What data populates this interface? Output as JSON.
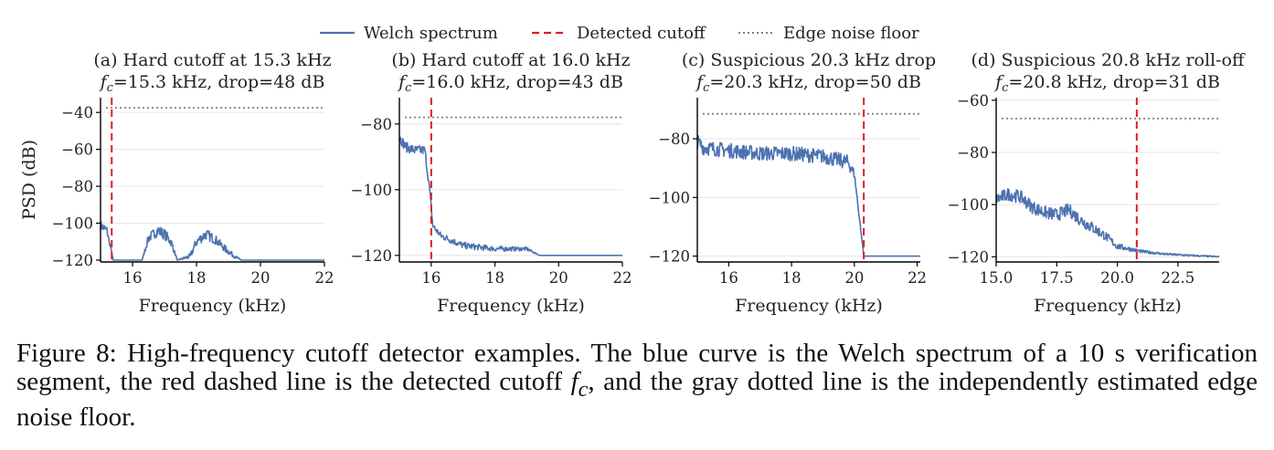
{
  "legend": {
    "welch": "Welch spectrum",
    "cutoff": "Detected cutoff",
    "noise": "Edge noise floor"
  },
  "colors": {
    "welch": "#4c72b0",
    "cutoff": "#e41a1c",
    "noise": "#808080"
  },
  "ylabel": "PSD (dB)",
  "xlabel": "Frequency (kHz)",
  "caption": {
    "prefix": "Figure 8: High-frequency cutoff detector examples. The blue curve is the Welch spectrum of a 10 s verification segment, the red dashed line is the detected cutoff ",
    "symbol": "fc",
    "suffix": ", and the gray dotted line is the independently estimated edge noise floor."
  },
  "chart_data": [
    {
      "type": "line",
      "title": "(a) Hard cutoff at 15.3 kHz",
      "subtitle": "fc=15.3 kHz, drop=48 dB",
      "xlim": [
        15,
        22
      ],
      "ylim": [
        -121,
        -32
      ],
      "xticks": [
        16,
        18,
        20,
        22
      ],
      "xticklabels": [
        "16",
        "18",
        "20",
        "22"
      ],
      "yticks": [
        -40,
        -60,
        -80,
        -100,
        -120
      ],
      "yticklabels": [
        "−40",
        "−60",
        "−80",
        "−100",
        "−120"
      ],
      "cutoff": 15.35,
      "noise_floor": -37.5,
      "series": [
        {
          "x": [
            15.0,
            15.2,
            15.4,
            16.3,
            16.5,
            16.8,
            17.0,
            17.2,
            17.4,
            17.8,
            18.0,
            18.3,
            18.6,
            18.9,
            19.2,
            19.4,
            22.0
          ],
          "y": [
            -101,
            -104,
            -120,
            -120,
            -108,
            -104,
            -106,
            -110,
            -120,
            -118,
            -110,
            -106,
            -109,
            -114,
            -118,
            -120,
            -120
          ],
          "noise": [
            2.5,
            2.5,
            0,
            0,
            2.5,
            3,
            3,
            2.5,
            0,
            1.5,
            2.5,
            3,
            2.5,
            2,
            1,
            0,
            0
          ]
        }
      ]
    },
    {
      "type": "line",
      "title": "(b) Hard cutoff at 16.0 kHz",
      "subtitle": "fc=16.0 kHz, drop=43 dB",
      "xlim": [
        15,
        22
      ],
      "ylim": [
        -122,
        -72
      ],
      "xticks": [
        16,
        18,
        20,
        22
      ],
      "xticklabels": [
        "16",
        "18",
        "20",
        "22"
      ],
      "yticks": [
        -80,
        -100,
        -120
      ],
      "yticklabels": [
        "−80",
        "−100",
        "−120"
      ],
      "cutoff": 16.0,
      "noise_floor": -78,
      "series": [
        {
          "x": [
            15.0,
            15.2,
            15.5,
            15.8,
            15.95,
            16.05,
            16.3,
            17.0,
            18.0,
            19.0,
            19.4,
            22.0
          ],
          "y": [
            -84,
            -87,
            -88,
            -88,
            -100,
            -111,
            -114,
            -117,
            -118,
            -118,
            -120,
            -120
          ],
          "noise": [
            1.5,
            1.5,
            1.5,
            1.5,
            1,
            1,
            1,
            1,
            0.8,
            0.6,
            0,
            0
          ]
        }
      ]
    },
    {
      "type": "line",
      "title": "(c) Suspicious 20.3 kHz drop",
      "subtitle": "fc=20.3 kHz, drop=50 dB",
      "xlim": [
        15,
        22.1
      ],
      "ylim": [
        -122,
        -66
      ],
      "xticks": [
        16,
        18,
        20,
        22
      ],
      "xticklabels": [
        "16",
        "18",
        "20",
        "22"
      ],
      "yticks": [
        -80,
        -100,
        -120
      ],
      "yticklabels": [
        "−80",
        "−100",
        "−120"
      ],
      "cutoff": 20.3,
      "noise_floor": -71.5,
      "series": [
        {
          "x": [
            15.0,
            15.2,
            16.0,
            17.0,
            18.0,
            19.0,
            19.8,
            20.0,
            20.15,
            20.3,
            22.1
          ],
          "y": [
            -81,
            -83,
            -84,
            -85,
            -85,
            -86,
            -88,
            -92,
            -106,
            -120,
            -120
          ],
          "noise": [
            2.5,
            2.5,
            2.5,
            2.5,
            2.5,
            2.5,
            2.5,
            1.5,
            0.5,
            0,
            0
          ]
        }
      ]
    },
    {
      "type": "line",
      "title": "(d) Suspicious 20.8 kHz roll-off",
      "subtitle": "fc=20.8 kHz, drop=31 dB",
      "xlim": [
        15,
        24.2
      ],
      "ylim": [
        -122,
        -59
      ],
      "xticks": [
        15,
        17.5,
        20,
        22.5
      ],
      "xticklabels": [
        "15.0",
        "17.5",
        "20.0",
        "22.5"
      ],
      "yticks": [
        -60,
        -80,
        -100,
        -120
      ],
      "yticklabels": [
        "−60",
        "−80",
        "−100",
        "−120"
      ],
      "cutoff": 20.8,
      "noise_floor": -67,
      "series": [
        {
          "x": [
            15.0,
            15.5,
            16.0,
            16.5,
            17.0,
            17.5,
            18.0,
            18.5,
            19.0,
            19.5,
            20.0,
            20.5,
            21.0,
            22.0,
            23.0,
            24.2
          ],
          "y": [
            -98,
            -96,
            -97,
            -101,
            -103,
            -104,
            -102,
            -106,
            -109,
            -112,
            -116,
            -117,
            -118,
            -119,
            -119.5,
            -120
          ],
          "noise": [
            2.5,
            2.5,
            2.5,
            2.5,
            2.5,
            2.5,
            2.5,
            2.5,
            2.2,
            1.8,
            1.2,
            0.8,
            0.6,
            0.4,
            0.3,
            0.2
          ]
        }
      ]
    }
  ]
}
